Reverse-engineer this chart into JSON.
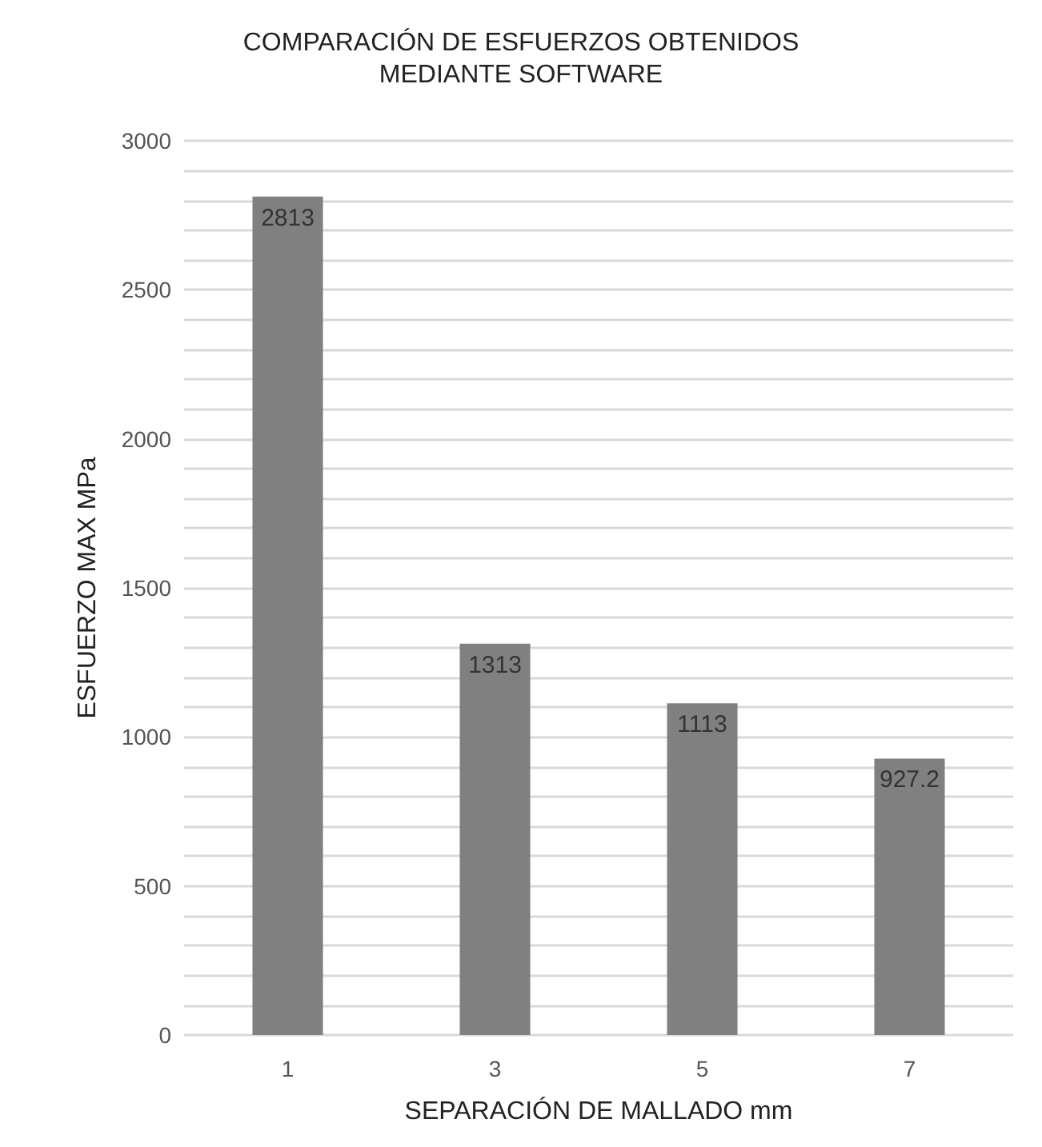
{
  "chart_data": {
    "type": "bar",
    "title": "COMPARACIÓN DE ESFUERZOS OBTENIDOS\nMEDIANTE SOFTWARE",
    "xlabel": "SEPARACIÓN DE MALLADO mm",
    "ylabel": "ESFUERZO MAX MPa",
    "categories": [
      "1",
      "3",
      "5",
      "7"
    ],
    "values": [
      2813,
      1313,
      1113,
      927.2
    ],
    "color": "#808080",
    "ylim": [
      0,
      3000
    ],
    "yticks": [
      0,
      500,
      1000,
      1500,
      2000,
      2500,
      3000
    ],
    "grid": "y",
    "data_labels": true
  }
}
